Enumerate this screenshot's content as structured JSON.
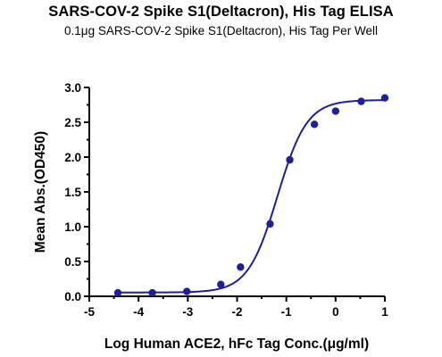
{
  "chart_data": {
    "type": "scatter",
    "title": "SARS-COV-2 Spike S1(Deltacron), His Tag ELISA",
    "subtitle": "0.1μg SARS-COV-2 Spike S1(Deltacron), His Tag Per Well",
    "xlabel": "Log Human ACE2, hFc Tag Conc.(μg/ml)",
    "ylabel": "Mean Abs.(OD450)",
    "xlim": [
      -5,
      1
    ],
    "ylim": [
      0,
      3.0
    ],
    "xticks": [
      "-5",
      "-4",
      "-3",
      "-2",
      "-1",
      "0",
      "1"
    ],
    "yticks": [
      "0.0",
      "0.5",
      "1.0",
      "1.5",
      "2.0",
      "2.5",
      "3.0"
    ],
    "grid": false,
    "series": [
      {
        "color": "#1f1f9c",
        "points": [
          {
            "x": -4.42,
            "y": 0.05
          },
          {
            "x": -3.72,
            "y": 0.05
          },
          {
            "x": -3.02,
            "y": 0.07
          },
          {
            "x": -2.33,
            "y": 0.17
          },
          {
            "x": -1.93,
            "y": 0.42
          },
          {
            "x": -1.33,
            "y": 1.04
          },
          {
            "x": -0.93,
            "y": 1.96
          },
          {
            "x": -0.43,
            "y": 2.47
          },
          {
            "x": 0.0,
            "y": 2.66
          },
          {
            "x": 0.52,
            "y": 2.8
          },
          {
            "x": 1.0,
            "y": 2.85
          }
        ],
        "fit": {
          "bottom": 0.055,
          "top": 2.82,
          "logEC50": -1.18,
          "hill": 1.45
        }
      }
    ]
  }
}
